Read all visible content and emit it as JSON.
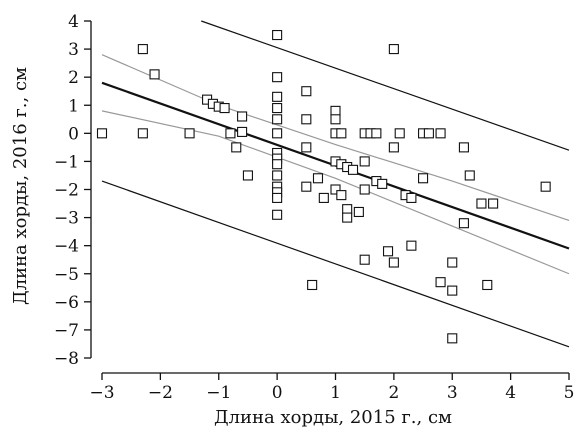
{
  "chart_data": {
    "type": "scatter",
    "xlabel": "Длина хорды, 2015 г., см",
    "ylabel": "Длина хорды, 2016 г., см",
    "xlim": [
      -3,
      5
    ],
    "ylim": [
      -8,
      4
    ],
    "x_ticks": [
      -3,
      -2,
      -1,
      0,
      1,
      2,
      3,
      4,
      5
    ],
    "y_ticks": [
      4,
      3,
      2,
      1,
      0,
      -1,
      -2,
      -3,
      -4,
      -5,
      -6,
      -7,
      -8
    ],
    "grid": false,
    "legend": "none",
    "marker": "open-square",
    "points": [
      {
        "x": -3.0,
        "y": 0.0
      },
      {
        "x": -2.3,
        "y": 3.0
      },
      {
        "x": -2.3,
        "y": 0.0
      },
      {
        "x": -2.1,
        "y": 2.1
      },
      {
        "x": -1.5,
        "y": 0.0
      },
      {
        "x": -1.2,
        "y": 1.2
      },
      {
        "x": -1.1,
        "y": 1.05
      },
      {
        "x": -1.0,
        "y": 0.95
      },
      {
        "x": -0.9,
        "y": 0.9
      },
      {
        "x": -0.8,
        "y": 0.0
      },
      {
        "x": -0.7,
        "y": -0.5
      },
      {
        "x": -0.6,
        "y": 0.6
      },
      {
        "x": -0.6,
        "y": 0.05
      },
      {
        "x": -0.5,
        "y": -1.5
      },
      {
        "x": 0.0,
        "y": 3.5
      },
      {
        "x": 0.0,
        "y": 2.0
      },
      {
        "x": 0.0,
        "y": 1.3
      },
      {
        "x": 0.0,
        "y": 0.9
      },
      {
        "x": 0.0,
        "y": 0.5
      },
      {
        "x": 0.0,
        "y": 0.0
      },
      {
        "x": 0.0,
        "y": -0.7
      },
      {
        "x": 0.0,
        "y": -0.9
      },
      {
        "x": 0.0,
        "y": -1.1
      },
      {
        "x": 0.0,
        "y": -1.5
      },
      {
        "x": 0.0,
        "y": -1.9
      },
      {
        "x": 0.0,
        "y": -2.1
      },
      {
        "x": 0.0,
        "y": -2.3
      },
      {
        "x": 0.0,
        "y": -2.9
      },
      {
        "x": 0.5,
        "y": 1.5
      },
      {
        "x": 0.5,
        "y": 0.5
      },
      {
        "x": 0.5,
        "y": -0.5
      },
      {
        "x": 0.5,
        "y": -1.9
      },
      {
        "x": 0.6,
        "y": -5.4
      },
      {
        "x": 0.7,
        "y": -1.6
      },
      {
        "x": 0.8,
        "y": -2.3
      },
      {
        "x": 1.0,
        "y": 0.8
      },
      {
        "x": 1.0,
        "y": 0.5
      },
      {
        "x": 1.0,
        "y": 0.0
      },
      {
        "x": 1.0,
        "y": -1.0
      },
      {
        "x": 1.0,
        "y": -2.0
      },
      {
        "x": 1.1,
        "y": 0.0
      },
      {
        "x": 1.1,
        "y": -1.1
      },
      {
        "x": 1.1,
        "y": -2.2
      },
      {
        "x": 1.2,
        "y": -1.2
      },
      {
        "x": 1.2,
        "y": -2.7
      },
      {
        "x": 1.2,
        "y": -3.0
      },
      {
        "x": 1.3,
        "y": -1.3
      },
      {
        "x": 1.4,
        "y": -2.8
      },
      {
        "x": 1.5,
        "y": 0.0
      },
      {
        "x": 1.5,
        "y": -1.0
      },
      {
        "x": 1.5,
        "y": -2.0
      },
      {
        "x": 1.5,
        "y": -4.5
      },
      {
        "x": 1.6,
        "y": 0.0
      },
      {
        "x": 1.7,
        "y": 0.0
      },
      {
        "x": 1.7,
        "y": -1.7
      },
      {
        "x": 1.8,
        "y": -1.8
      },
      {
        "x": 1.9,
        "y": -4.2
      },
      {
        "x": 2.0,
        "y": 3.0
      },
      {
        "x": 2.0,
        "y": -0.5
      },
      {
        "x": 2.0,
        "y": -4.6
      },
      {
        "x": 2.1,
        "y": 0.0
      },
      {
        "x": 2.2,
        "y": -2.2
      },
      {
        "x": 2.3,
        "y": -2.3
      },
      {
        "x": 2.3,
        "y": -4.0
      },
      {
        "x": 2.5,
        "y": 0.0
      },
      {
        "x": 2.5,
        "y": -1.6
      },
      {
        "x": 2.6,
        "y": 0.0
      },
      {
        "x": 2.8,
        "y": 0.0
      },
      {
        "x": 2.8,
        "y": -5.3
      },
      {
        "x": 3.0,
        "y": -4.6
      },
      {
        "x": 3.0,
        "y": -5.6
      },
      {
        "x": 3.0,
        "y": -7.3
      },
      {
        "x": 3.2,
        "y": -0.5
      },
      {
        "x": 3.2,
        "y": -3.2
      },
      {
        "x": 3.3,
        "y": -1.5
      },
      {
        "x": 3.5,
        "y": -2.5
      },
      {
        "x": 3.6,
        "y": -5.4
      },
      {
        "x": 3.7,
        "y": -2.5
      },
      {
        "x": 4.6,
        "y": -1.9
      }
    ],
    "lines": [
      {
        "role": "regression",
        "x": [
          -3,
          5
        ],
        "y": [
          1.8,
          -4.1
        ],
        "color": "#111111",
        "width": "thick"
      },
      {
        "role": "confidence-upper",
        "x": [
          -3,
          -1,
          1,
          3,
          5
        ],
        "y": [
          2.8,
          1.0,
          -0.4,
          -1.7,
          -3.1
        ],
        "color": "#999999",
        "width": "thin"
      },
      {
        "role": "confidence-lower",
        "x": [
          -3,
          -1,
          1,
          3,
          5
        ],
        "y": [
          0.8,
          -0.1,
          -1.6,
          -3.3,
          -5.0
        ],
        "color": "#999999",
        "width": "thin"
      },
      {
        "role": "prediction-upper",
        "x": [
          -1.3,
          5
        ],
        "y": [
          4.0,
          -0.6
        ],
        "color": "#111111",
        "width": "thin"
      },
      {
        "role": "prediction-lower",
        "x": [
          -3,
          5
        ],
        "y": [
          -1.7,
          -7.6
        ],
        "color": "#111111",
        "width": "thin"
      }
    ]
  }
}
